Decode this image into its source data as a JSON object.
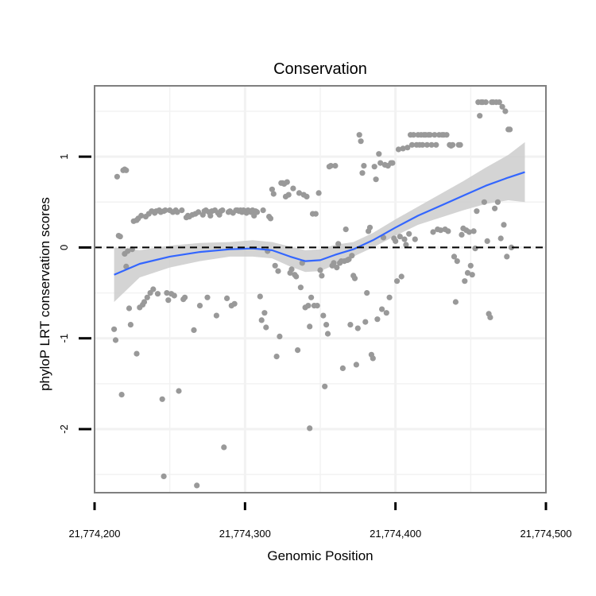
{
  "chart_data": {
    "type": "scatter",
    "title": "Conservation",
    "xlabel": "Genomic Position",
    "ylabel": "phyloP LRT conservation scores",
    "xlim": [
      21774213,
      21774487
    ],
    "ylim": [
      -2.7,
      1.78
    ],
    "x_ticks": [
      21774200,
      21774300,
      21774400,
      21774500
    ],
    "x_tick_labels": [
      "21,774,200",
      "21,774,300",
      "21,774,400",
      "21,774,500"
    ],
    "y_ticks": [
      -2,
      -1,
      0,
      1
    ],
    "y_tick_labels": [
      "-2",
      "-1",
      "0",
      "1"
    ],
    "grid": true,
    "reference_line": {
      "y": 0,
      "style": "dashed"
    },
    "colors": {
      "points": "#999999",
      "smooth_line": "#3366FF",
      "confidence_band": "#CCCCCC",
      "panel_border": "#7f7f7f",
      "grid": "#f2f2f2"
    },
    "points": [
      {
        "x": 21774213,
        "y": -0.9
      },
      {
        "x": 21774214,
        "y": -1.02
      },
      {
        "x": 21774215,
        "y": 0.78
      },
      {
        "x": 21774216,
        "y": 0.13
      },
      {
        "x": 21774217,
        "y": 0.12
      },
      {
        "x": 21774218,
        "y": -1.62
      },
      {
        "x": 21774219,
        "y": 0.85
      },
      {
        "x": 21774220,
        "y": 0.86
      },
      {
        "x": 21774220,
        "y": -0.07
      },
      {
        "x": 21774221,
        "y": 0.85
      },
      {
        "x": 21774221,
        "y": -0.21
      },
      {
        "x": 21774222,
        "y": -0.04
      },
      {
        "x": 21774223,
        "y": -0.67
      },
      {
        "x": 21774224,
        "y": -0.85
      },
      {
        "x": 21774225,
        "y": -0.02
      },
      {
        "x": 21774226,
        "y": 0.29
      },
      {
        "x": 21774228,
        "y": 0.3
      },
      {
        "x": 21774228,
        "y": -1.17
      },
      {
        "x": 21774229,
        "y": 0.32
      },
      {
        "x": 21774230,
        "y": -0.66
      },
      {
        "x": 21774231,
        "y": 0.35
      },
      {
        "x": 21774232,
        "y": -0.63
      },
      {
        "x": 21774233,
        "y": -0.6
      },
      {
        "x": 21774234,
        "y": 0.34
      },
      {
        "x": 21774235,
        "y": -0.55
      },
      {
        "x": 21774236,
        "y": 0.37
      },
      {
        "x": 21774237,
        "y": -0.5
      },
      {
        "x": 21774238,
        "y": 0.4
      },
      {
        "x": 21774239,
        "y": -0.46
      },
      {
        "x": 21774240,
        "y": 0.38
      },
      {
        "x": 21774241,
        "y": 0.4
      },
      {
        "x": 21774242,
        "y": -0.51
      },
      {
        "x": 21774243,
        "y": 0.41
      },
      {
        "x": 21774244,
        "y": 0.39
      },
      {
        "x": 21774245,
        "y": -1.67
      },
      {
        "x": 21774246,
        "y": -2.52
      },
      {
        "x": 21774246,
        "y": 0.4
      },
      {
        "x": 21774247,
        "y": 0.41
      },
      {
        "x": 21774248,
        "y": -0.5
      },
      {
        "x": 21774249,
        "y": -0.58
      },
      {
        "x": 21774250,
        "y": 0.41
      },
      {
        "x": 21774251,
        "y": -0.51
      },
      {
        "x": 21774252,
        "y": 0.39
      },
      {
        "x": 21774253,
        "y": -0.53
      },
      {
        "x": 21774254,
        "y": 0.41
      },
      {
        "x": 21774255,
        "y": 0.39
      },
      {
        "x": 21774256,
        "y": -1.58
      },
      {
        "x": 21774258,
        "y": 0.41
      },
      {
        "x": 21774259,
        "y": -0.57
      },
      {
        "x": 21774260,
        "y": -0.55
      },
      {
        "x": 21774261,
        "y": 0.33
      },
      {
        "x": 21774262,
        "y": 0.35
      },
      {
        "x": 21774263,
        "y": 0.34
      },
      {
        "x": 21774265,
        "y": 0.36
      },
      {
        "x": 21774266,
        "y": -0.91
      },
      {
        "x": 21774267,
        "y": 0.37
      },
      {
        "x": 21774268,
        "y": -2.62
      },
      {
        "x": 21774269,
        "y": 0.39
      },
      {
        "x": 21774270,
        "y": -0.64
      },
      {
        "x": 21774272,
        "y": 0.36
      },
      {
        "x": 21774273,
        "y": 0.4
      },
      {
        "x": 21774274,
        "y": 0.41
      },
      {
        "x": 21774275,
        "y": -0.55
      },
      {
        "x": 21774276,
        "y": 0.39
      },
      {
        "x": 21774277,
        "y": 0.35
      },
      {
        "x": 21774278,
        "y": 0.4
      },
      {
        "x": 21774280,
        "y": 0.41
      },
      {
        "x": 21774281,
        "y": -0.75
      },
      {
        "x": 21774282,
        "y": 0.38
      },
      {
        "x": 21774283,
        "y": 0.36
      },
      {
        "x": 21774284,
        "y": 0.4
      },
      {
        "x": 21774285,
        "y": 0.41
      },
      {
        "x": 21774286,
        "y": -2.2
      },
      {
        "x": 21774288,
        "y": -0.56
      },
      {
        "x": 21774289,
        "y": 0.39
      },
      {
        "x": 21774290,
        "y": 0.4
      },
      {
        "x": 21774291,
        "y": -0.64
      },
      {
        "x": 21774292,
        "y": 0.38
      },
      {
        "x": 21774293,
        "y": -0.62
      },
      {
        "x": 21774294,
        "y": 0.41
      },
      {
        "x": 21774295,
        "y": 0.41
      },
      {
        "x": 21774296,
        "y": 0.4
      },
      {
        "x": 21774297,
        "y": 0.41
      },
      {
        "x": 21774298,
        "y": 0.39
      },
      {
        "x": 21774299,
        "y": 0.41
      },
      {
        "x": 21774300,
        "y": 0.4
      },
      {
        "x": 21774301,
        "y": 0.38
      },
      {
        "x": 21774302,
        "y": 0.41
      },
      {
        "x": 21774303,
        "y": 0.4
      },
      {
        "x": 21774304,
        "y": 0.39
      },
      {
        "x": 21774305,
        "y": 0.41
      },
      {
        "x": 21774306,
        "y": 0.35
      },
      {
        "x": 21774307,
        "y": 0.4
      },
      {
        "x": 21774308,
        "y": 0.39
      },
      {
        "x": 21774310,
        "y": -0.54
      },
      {
        "x": 21774311,
        "y": -0.8
      },
      {
        "x": 21774312,
        "y": 0.41
      },
      {
        "x": 21774313,
        "y": -0.72
      },
      {
        "x": 21774314,
        "y": -0.88
      },
      {
        "x": 21774315,
        "y": -0.04
      },
      {
        "x": 21774316,
        "y": 0.34
      },
      {
        "x": 21774317,
        "y": 0.32
      },
      {
        "x": 21774318,
        "y": 0.64
      },
      {
        "x": 21774319,
        "y": 0.59
      },
      {
        "x": 21774320,
        "y": -0.2
      },
      {
        "x": 21774321,
        "y": -1.2
      },
      {
        "x": 21774322,
        "y": -0.26
      },
      {
        "x": 21774323,
        "y": -0.98
      },
      {
        "x": 21774324,
        "y": 0.71
      },
      {
        "x": 21774325,
        "y": 0.71
      },
      {
        "x": 21774326,
        "y": 0.7
      },
      {
        "x": 21774327,
        "y": 0.56
      },
      {
        "x": 21774328,
        "y": 0.72
      },
      {
        "x": 21774329,
        "y": 0.58
      },
      {
        "x": 21774330,
        "y": -0.28
      },
      {
        "x": 21774331,
        "y": -0.24
      },
      {
        "x": 21774332,
        "y": 0.65
      },
      {
        "x": 21774333,
        "y": -0.3
      },
      {
        "x": 21774334,
        "y": -0.32
      },
      {
        "x": 21774335,
        "y": -1.13
      },
      {
        "x": 21774336,
        "y": 0.6
      },
      {
        "x": 21774337,
        "y": -0.44
      },
      {
        "x": 21774338,
        "y": -0.17
      },
      {
        "x": 21774339,
        "y": 0.58
      },
      {
        "x": 21774340,
        "y": -0.66
      },
      {
        "x": 21774341,
        "y": 0.56
      },
      {
        "x": 21774342,
        "y": -0.64
      },
      {
        "x": 21774343,
        "y": -0.87
      },
      {
        "x": 21774343,
        "y": -1.99
      },
      {
        "x": 21774344,
        "y": -0.55
      },
      {
        "x": 21774345,
        "y": 0.37
      },
      {
        "x": 21774346,
        "y": -0.64
      },
      {
        "x": 21774347,
        "y": 0.37
      },
      {
        "x": 21774348,
        "y": -0.64
      },
      {
        "x": 21774349,
        "y": 0.6
      },
      {
        "x": 21774350,
        "y": -0.25
      },
      {
        "x": 21774351,
        "y": -0.31
      },
      {
        "x": 21774352,
        "y": -0.75
      },
      {
        "x": 21774353,
        "y": -1.53
      },
      {
        "x": 21774354,
        "y": -0.85
      },
      {
        "x": 21774355,
        "y": -0.95
      },
      {
        "x": 21774356,
        "y": 0.89
      },
      {
        "x": 21774357,
        "y": 0.9
      },
      {
        "x": 21774358,
        "y": -0.2
      },
      {
        "x": 21774359,
        "y": -0.17
      },
      {
        "x": 21774360,
        "y": 0.9
      },
      {
        "x": 21774361,
        "y": -0.22
      },
      {
        "x": 21774362,
        "y": 0.04
      },
      {
        "x": 21774363,
        "y": -0.17
      },
      {
        "x": 21774364,
        "y": -0.15
      },
      {
        "x": 21774365,
        "y": -1.33
      },
      {
        "x": 21774366,
        "y": -0.15
      },
      {
        "x": 21774367,
        "y": 0.2
      },
      {
        "x": 21774368,
        "y": -0.14
      },
      {
        "x": 21774369,
        "y": -0.13
      },
      {
        "x": 21774370,
        "y": -0.85
      },
      {
        "x": 21774371,
        "y": -0.09
      },
      {
        "x": 21774372,
        "y": -0.31
      },
      {
        "x": 21774373,
        "y": -0.34
      },
      {
        "x": 21774374,
        "y": -1.29
      },
      {
        "x": 21774375,
        "y": -0.89
      },
      {
        "x": 21774376,
        "y": 1.24
      },
      {
        "x": 21774377,
        "y": 1.17
      },
      {
        "x": 21774378,
        "y": 0.82
      },
      {
        "x": 21774379,
        "y": 0.9
      },
      {
        "x": 21774380,
        "y": -0.82
      },
      {
        "x": 21774381,
        "y": -0.5
      },
      {
        "x": 21774382,
        "y": 0.18
      },
      {
        "x": 21774383,
        "y": 0.22
      },
      {
        "x": 21774384,
        "y": -1.18
      },
      {
        "x": 21774385,
        "y": -1.22
      },
      {
        "x": 21774386,
        "y": 0.89
      },
      {
        "x": 21774387,
        "y": 0.75
      },
      {
        "x": 21774388,
        "y": -0.79
      },
      {
        "x": 21774389,
        "y": 1.03
      },
      {
        "x": 21774390,
        "y": 0.93
      },
      {
        "x": 21774391,
        "y": -0.68
      },
      {
        "x": 21774392,
        "y": 0.11
      },
      {
        "x": 21774393,
        "y": 0.91
      },
      {
        "x": 21774394,
        "y": -0.72
      },
      {
        "x": 21774395,
        "y": 0.9
      },
      {
        "x": 21774396,
        "y": -0.55
      },
      {
        "x": 21774397,
        "y": 0.93
      },
      {
        "x": 21774398,
        "y": 0.93
      },
      {
        "x": 21774399,
        "y": 0.1
      },
      {
        "x": 21774400,
        "y": 0.07
      },
      {
        "x": 21774401,
        "y": -0.37
      },
      {
        "x": 21774402,
        "y": 1.08
      },
      {
        "x": 21774403,
        "y": 0.12
      },
      {
        "x": 21774404,
        "y": -0.32
      },
      {
        "x": 21774405,
        "y": 1.09
      },
      {
        "x": 21774406,
        "y": 0.09
      },
      {
        "x": 21774407,
        "y": 0.03
      },
      {
        "x": 21774408,
        "y": 1.1
      },
      {
        "x": 21774409,
        "y": 0.15
      },
      {
        "x": 21774410,
        "y": 1.24
      },
      {
        "x": 21774411,
        "y": 1.13
      },
      {
        "x": 21774412,
        "y": 1.24
      },
      {
        "x": 21774413,
        "y": 0.09
      },
      {
        "x": 21774414,
        "y": 1.13
      },
      {
        "x": 21774415,
        "y": 1.24
      },
      {
        "x": 21774416,
        "y": 1.13
      },
      {
        "x": 21774417,
        "y": 1.24
      },
      {
        "x": 21774418,
        "y": 1.13
      },
      {
        "x": 21774419,
        "y": 1.24
      },
      {
        "x": 21774420,
        "y": 1.24
      },
      {
        "x": 21774421,
        "y": 1.13
      },
      {
        "x": 21774422,
        "y": 1.24
      },
      {
        "x": 21774423,
        "y": 1.24
      },
      {
        "x": 21774424,
        "y": 1.13
      },
      {
        "x": 21774425,
        "y": 0.17
      },
      {
        "x": 21774426,
        "y": 1.24
      },
      {
        "x": 21774427,
        "y": 1.13
      },
      {
        "x": 21774428,
        "y": 0.2
      },
      {
        "x": 21774429,
        "y": 1.24
      },
      {
        "x": 21774430,
        "y": 0.19
      },
      {
        "x": 21774431,
        "y": 1.24
      },
      {
        "x": 21774432,
        "y": 1.24
      },
      {
        "x": 21774433,
        "y": 0.2
      },
      {
        "x": 21774434,
        "y": 1.24
      },
      {
        "x": 21774435,
        "y": 0.18
      },
      {
        "x": 21774436,
        "y": 1.13
      },
      {
        "x": 21774437,
        "y": 1.12
      },
      {
        "x": 21774438,
        "y": 1.13
      },
      {
        "x": 21774439,
        "y": -0.1
      },
      {
        "x": 21774440,
        "y": -0.6
      },
      {
        "x": 21774441,
        "y": -0.15
      },
      {
        "x": 21774442,
        "y": 1.13
      },
      {
        "x": 21774443,
        "y": 1.13
      },
      {
        "x": 21774444,
        "y": 0.14
      },
      {
        "x": 21774445,
        "y": 0.21
      },
      {
        "x": 21774446,
        "y": -0.37
      },
      {
        "x": 21774447,
        "y": 0.19
      },
      {
        "x": 21774448,
        "y": -0.28
      },
      {
        "x": 21774449,
        "y": 0.17
      },
      {
        "x": 21774450,
        "y": -0.2
      },
      {
        "x": 21774451,
        "y": -0.3
      },
      {
        "x": 21774452,
        "y": 0.18
      },
      {
        "x": 21774453,
        "y": -0.01
      },
      {
        "x": 21774454,
        "y": 0.4
      },
      {
        "x": 21774455,
        "y": 1.6
      },
      {
        "x": 21774456,
        "y": 1.45
      },
      {
        "x": 21774457,
        "y": 1.6
      },
      {
        "x": 21774458,
        "y": 1.6
      },
      {
        "x": 21774459,
        "y": 0.5
      },
      {
        "x": 21774460,
        "y": 1.6
      },
      {
        "x": 21774461,
        "y": 0.07
      },
      {
        "x": 21774462,
        "y": -0.73
      },
      {
        "x": 21774463,
        "y": -0.77
      },
      {
        "x": 21774464,
        "y": 1.6
      },
      {
        "x": 21774465,
        "y": 1.6
      },
      {
        "x": 21774466,
        "y": 0.43
      },
      {
        "x": 21774467,
        "y": 1.6
      },
      {
        "x": 21774468,
        "y": 0.5
      },
      {
        "x": 21774469,
        "y": 1.6
      },
      {
        "x": 21774470,
        "y": 0.1
      },
      {
        "x": 21774471,
        "y": 1.55
      },
      {
        "x": 21774472,
        "y": 0.25
      },
      {
        "x": 21774473,
        "y": 1.5
      },
      {
        "x": 21774474,
        "y": -0.1
      },
      {
        "x": 21774475,
        "y": 1.3
      },
      {
        "x": 21774476,
        "y": 1.3
      },
      {
        "x": 21774477,
        "y": 0.0
      }
    ],
    "smooth": {
      "x": [
        21774213,
        21774230,
        21774250,
        21774270,
        21774290,
        21774305,
        21774318,
        21774330,
        21774340,
        21774350,
        21774360,
        21774372,
        21774385,
        21774400,
        21774415,
        21774430,
        21774445,
        21774460,
        21774475,
        21774486
      ],
      "y": [
        -0.3,
        -0.18,
        -0.1,
        -0.05,
        -0.02,
        -0.01,
        -0.03,
        -0.1,
        -0.15,
        -0.14,
        -0.08,
        -0.02,
        0.08,
        0.22,
        0.35,
        0.46,
        0.57,
        0.68,
        0.77,
        0.83
      ],
      "lo": [
        -0.6,
        -0.33,
        -0.22,
        -0.15,
        -0.1,
        -0.1,
        -0.12,
        -0.21,
        -0.27,
        -0.26,
        -0.19,
        -0.1,
        0.0,
        0.13,
        0.25,
        0.33,
        0.41,
        0.48,
        0.52,
        0.5
      ],
      "hi": [
        0.0,
        -0.03,
        0.02,
        0.05,
        0.06,
        0.08,
        0.06,
        0.01,
        -0.03,
        -0.02,
        0.03,
        0.06,
        0.16,
        0.31,
        0.45,
        0.59,
        0.73,
        0.88,
        1.02,
        1.16
      ]
    }
  }
}
